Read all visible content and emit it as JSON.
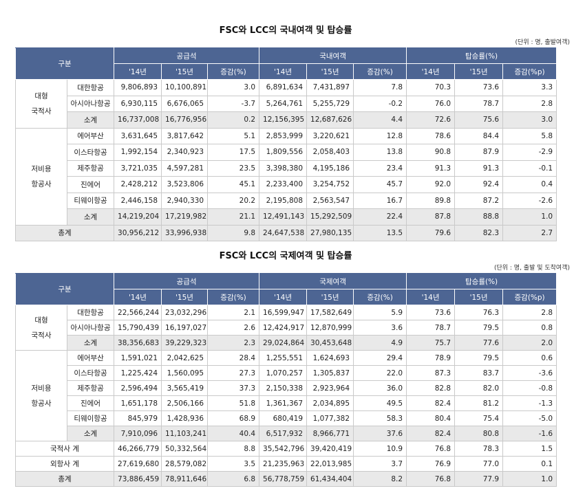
{
  "tables": [
    {
      "title": "FSC와 LCC의 국내여객 및 탑승률",
      "unit": "(단위 : 명, 출발여객)",
      "header": {
        "category": "구분",
        "groups": [
          "공급석",
          "국내여객",
          "탑승률(%)"
        ],
        "sub": [
          "'14년",
          "'15년",
          "증감(%)",
          "'14년",
          "'15년",
          "증감(%)",
          "'14년",
          "'15년",
          "증감(%p)"
        ]
      },
      "sections": [
        {
          "group": "대형\n국적사",
          "rows": [
            {
              "label": "대한항공",
              "values": [
                "9,806,893",
                "10,100,891",
                "3.0",
                "6,891,634",
                "7,431,897",
                "7.8",
                "70.3",
                "73.6",
                "3.3"
              ]
            },
            {
              "label": "아시아나항공",
              "values": [
                "6,930,115",
                "6,676,065",
                "-3.7",
                "5,264,761",
                "5,255,729",
                "-0.2",
                "76.0",
                "78.7",
                "2.8"
              ]
            },
            {
              "label": "소계",
              "subtotal": true,
              "values": [
                "16,737,008",
                "16,776,956",
                "0.2",
                "12,156,395",
                "12,687,626",
                "4.4",
                "72.6",
                "75.6",
                "3.0"
              ]
            }
          ]
        },
        {
          "group": "저비용\n항공사",
          "rows": [
            {
              "label": "에어부산",
              "values": [
                "3,631,645",
                "3,817,642",
                "5.1",
                "2,853,999",
                "3,220,621",
                "12.8",
                "78.6",
                "84.4",
                "5.8"
              ]
            },
            {
              "label": "이스타항공",
              "values": [
                "1,992,154",
                "2,340,923",
                "17.5",
                "1,809,556",
                "2,058,403",
                "13.8",
                "90.8",
                "87.9",
                "-2.9"
              ]
            },
            {
              "label": "제주항공",
              "values": [
                "3,721,035",
                "4,597,281",
                "23.5",
                "3,398,380",
                "4,195,186",
                "23.4",
                "91.3",
                "91.3",
                "-0.1"
              ]
            },
            {
              "label": "진에어",
              "values": [
                "2,428,212",
                "3,523,806",
                "45.1",
                "2,233,400",
                "3,254,752",
                "45.7",
                "92.0",
                "92.4",
                "0.4"
              ]
            },
            {
              "label": "티웨이항공",
              "values": [
                "2,446,158",
                "2,940,330",
                "20.2",
                "2,195,808",
                "2,563,547",
                "16.7",
                "89.8",
                "87.2",
                "-2.6"
              ]
            },
            {
              "label": "소계",
              "subtotal": true,
              "values": [
                "14,219,204",
                "17,219,982",
                "21.1",
                "12,491,143",
                "15,292,509",
                "22.4",
                "87.8",
                "88.8",
                "1.0"
              ]
            }
          ]
        }
      ],
      "totals": [
        {
          "label": "총계",
          "shaded": true,
          "values": [
            "30,956,212",
            "33,996,938",
            "9.8",
            "24,647,538",
            "27,980,135",
            "13.5",
            "79.6",
            "82.3",
            "2.7"
          ]
        }
      ]
    },
    {
      "title": "FSC와 LCC의 국제여객 및 탑승률",
      "unit": "(단위 : 명, 출발 및 도착여객)",
      "header": {
        "category": "구분",
        "groups": [
          "공급석",
          "국제여객",
          "탑승률(%)"
        ],
        "sub": [
          "'14년",
          "'15년",
          "증감(%)",
          "'14년",
          "'15년",
          "증감(%)",
          "'14년",
          "'15년",
          "증감(%p)"
        ]
      },
      "sections": [
        {
          "group": "대형\n국적사",
          "rows": [
            {
              "label": "대한항공",
              "values": [
                "22,566,244",
                "23,032,296",
                "2.1",
                "16,599,947",
                "17,582,649",
                "5.9",
                "73.6",
                "76.3",
                "2.8"
              ]
            },
            {
              "label": "아시아나항공",
              "values": [
                "15,790,439",
                "16,197,027",
                "2.6",
                "12,424,917",
                "12,870,999",
                "3.6",
                "78.7",
                "79.5",
                "0.8"
              ]
            },
            {
              "label": "소계",
              "subtotal": true,
              "values": [
                "38,356,683",
                "39,229,323",
                "2.3",
                "29,024,864",
                "30,453,648",
                "4.9",
                "75.7",
                "77.6",
                "2.0"
              ]
            }
          ]
        },
        {
          "group": "저비용\n항공사",
          "rows": [
            {
              "label": "에어부산",
              "values": [
                "1,591,021",
                "2,042,625",
                "28.4",
                "1,255,551",
                "1,624,693",
                "29.4",
                "78.9",
                "79.5",
                "0.6"
              ]
            },
            {
              "label": "이스타항공",
              "values": [
                "1,225,424",
                "1,560,095",
                "27.3",
                "1,070,257",
                "1,305,837",
                "22.0",
                "87.3",
                "83.7",
                "-3.6"
              ]
            },
            {
              "label": "제주항공",
              "values": [
                "2,596,494",
                "3,565,419",
                "37.3",
                "2,150,338",
                "2,923,964",
                "36.0",
                "82.8",
                "82.0",
                "-0.8"
              ]
            },
            {
              "label": "진에어",
              "values": [
                "1,651,178",
                "2,506,166",
                "51.8",
                "1,361,367",
                "2,034,895",
                "49.5",
                "82.4",
                "81.2",
                "-1.3"
              ]
            },
            {
              "label": "티웨이항공",
              "values": [
                "845,979",
                "1,428,936",
                "68.9",
                "680,419",
                "1,077,382",
                "58.3",
                "80.4",
                "75.4",
                "-5.0"
              ]
            },
            {
              "label": "소계",
              "subtotal": true,
              "values": [
                "7,910,096",
                "11,103,241",
                "40.4",
                "6,517,932",
                "8,966,771",
                "37.6",
                "82.4",
                "80.8",
                "-1.6"
              ]
            }
          ]
        }
      ],
      "totals": [
        {
          "label": "국적사 계",
          "values": [
            "46,266,779",
            "50,332,564",
            "8.8",
            "35,542,796",
            "39,420,419",
            "10.9",
            "76.8",
            "78.3",
            "1.5"
          ]
        },
        {
          "label": "외항사 계",
          "values": [
            "27,619,680",
            "28,579,082",
            "3.5",
            "21,235,963",
            "22,013,985",
            "3.7",
            "76.9",
            "77.0",
            "0.1"
          ]
        },
        {
          "label": "총계",
          "shaded": true,
          "values": [
            "73,886,459",
            "78,911,646",
            "6.8",
            "56,778,759",
            "61,434,404",
            "8.2",
            "76.8",
            "77.9",
            "1.0"
          ]
        }
      ]
    }
  ]
}
